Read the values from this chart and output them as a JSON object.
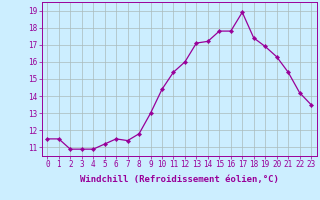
{
  "x": [
    0,
    1,
    2,
    3,
    4,
    5,
    6,
    7,
    8,
    9,
    10,
    11,
    12,
    13,
    14,
    15,
    16,
    17,
    18,
    19,
    20,
    21,
    22,
    23
  ],
  "y": [
    11.5,
    11.5,
    10.9,
    10.9,
    10.9,
    11.2,
    11.5,
    11.4,
    11.8,
    13.0,
    14.4,
    15.4,
    16.0,
    17.1,
    17.2,
    17.8,
    17.8,
    18.9,
    17.4,
    16.9,
    16.3,
    15.4,
    14.2,
    13.5
  ],
  "line_color": "#990099",
  "marker": "D",
  "marker_size": 2.2,
  "bg_color": "#cceeff",
  "grid_color": "#aabbbb",
  "xlabel": "Windchill (Refroidissement éolien,°C)",
  "ylabel_ticks": [
    11,
    12,
    13,
    14,
    15,
    16,
    17,
    18,
    19
  ],
  "xlim": [
    -0.5,
    23.5
  ],
  "ylim": [
    10.5,
    19.5
  ],
  "tick_fontsize": 5.5,
  "xlabel_fontsize": 6.5
}
